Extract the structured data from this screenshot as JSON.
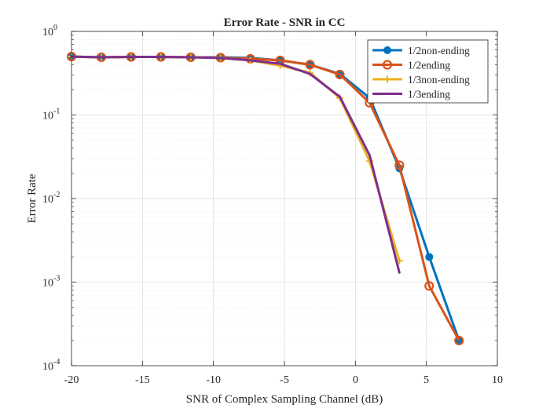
{
  "chart_data": {
    "type": "line",
    "title": "Error Rate - SNR in CC",
    "xlabel": "SNR of Complex Sampling Channel (dB)",
    "ylabel": "Error Rate",
    "xlim": [
      -20,
      10
    ],
    "ylim": [
      0.0001,
      1
    ],
    "yscale": "log",
    "grid": true,
    "legend_location": "top-right",
    "x_ticks": [
      -20,
      -15,
      -10,
      -5,
      0,
      5,
      10
    ],
    "x_tick_labels": [
      "-20",
      "-15",
      "-10",
      "-5",
      "0",
      "5",
      "10"
    ],
    "y_ticks": [
      {
        "value": 0.0001,
        "base": "10",
        "exp": "-4"
      },
      {
        "value": 0.001,
        "base": "10",
        "exp": "-3"
      },
      {
        "value": 0.01,
        "base": "10",
        "exp": "-2"
      },
      {
        "value": 0.1,
        "base": "10",
        "exp": "-1"
      },
      {
        "value": 1,
        "base": "10",
        "exp": "0"
      }
    ],
    "series": [
      {
        "name": "1/2non-ending",
        "color": "#0072BD",
        "marker": "filled-circle",
        "x": [
          -20,
          -17.9,
          -15.8,
          -13.7,
          -11.6,
          -9.5,
          -7.4,
          -5.3,
          -3.2,
          -1.1,
          1.0,
          3.1,
          5.2,
          7.3
        ],
        "y": [
          0.5,
          0.49,
          0.495,
          0.495,
          0.49,
          0.49,
          0.48,
          0.45,
          0.4,
          0.31,
          0.16,
          0.023,
          0.002,
          0.0002
        ]
      },
      {
        "name": "1/2ending",
        "color": "#D95319",
        "marker": "open-circle",
        "x": [
          -20,
          -17.9,
          -15.8,
          -13.7,
          -11.6,
          -9.5,
          -7.4,
          -5.3,
          -3.2,
          -1.1,
          1.0,
          3.1,
          5.2,
          7.3
        ],
        "y": [
          0.5,
          0.49,
          0.495,
          0.495,
          0.49,
          0.485,
          0.47,
          0.45,
          0.4,
          0.305,
          0.14,
          0.025,
          0.0009,
          0.0002
        ]
      },
      {
        "name": "1/3non-ending",
        "color": "#EDB120",
        "marker": "plus",
        "x": [
          -20,
          -17.9,
          -15.8,
          -13.7,
          -11.6,
          -9.5,
          -7.4,
          -5.3,
          -3.2,
          -1.1,
          1.0,
          3.1
        ],
        "y": [
          0.5,
          0.49,
          0.495,
          0.495,
          0.49,
          0.48,
          0.45,
          0.39,
          0.32,
          0.16,
          0.028,
          0.0018
        ]
      },
      {
        "name": "1/3ending",
        "color": "#7E2F8E",
        "marker": "point",
        "x": [
          -20,
          -17.9,
          -15.8,
          -13.7,
          -11.6,
          -9.5,
          -7.4,
          -5.3,
          -3.2,
          -1.1,
          1.0,
          3.1
        ],
        "y": [
          0.5,
          0.49,
          0.495,
          0.495,
          0.49,
          0.48,
          0.45,
          0.41,
          0.31,
          0.165,
          0.033,
          0.0013
        ]
      }
    ]
  }
}
